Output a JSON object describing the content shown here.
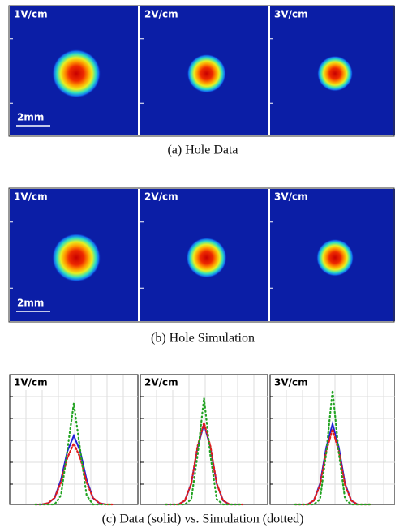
{
  "subfigures": [
    {
      "panels": [
        {
          "title": "1V/cm",
          "scale_bar": "2mm"
        },
        {
          "title": "2V/cm"
        },
        {
          "title": "3V/cm"
        }
      ],
      "caption": "(a) Hole Data"
    },
    {
      "panels": [
        {
          "title": "1V/cm",
          "scale_bar": "2mm"
        },
        {
          "title": "2V/cm"
        },
        {
          "title": "3V/cm"
        }
      ],
      "caption": "(b) Hole Simulation"
    },
    {
      "chart_data": [
        {
          "type": "line",
          "title": "1V/cm",
          "xlim": [
            0,
            1
          ],
          "ylim": [
            0,
            1
          ],
          "x": [
            0.2,
            0.25,
            0.3,
            0.35,
            0.4,
            0.45,
            0.5,
            0.55,
            0.6,
            0.65,
            0.7,
            0.75,
            0.8
          ],
          "series": [
            {
              "color": "#1f1fd6",
              "values": [
                0,
                0,
                0.01,
                0.05,
                0.19,
                0.41,
                0.53,
                0.41,
                0.19,
                0.05,
                0.01,
                0,
                0
              ]
            },
            {
              "color": "#e01c1c",
              "values": [
                0,
                0,
                0.01,
                0.05,
                0.17,
                0.36,
                0.47,
                0.36,
                0.17,
                0.05,
                0.01,
                0,
                0
              ]
            },
            {
              "color": "#22a322",
              "values": [
                0,
                0,
                0,
                0,
                0.07,
                0.42,
                0.78,
                0.42,
                0.07,
                0,
                0,
                0,
                0
              ]
            }
          ]
        },
        {
          "type": "line",
          "title": "2V/cm",
          "xlim": [
            0,
            1
          ],
          "ylim": [
            0,
            1
          ],
          "x": [
            0.2,
            0.25,
            0.3,
            0.35,
            0.4,
            0.45,
            0.5,
            0.55,
            0.6,
            0.65,
            0.7,
            0.75,
            0.8
          ],
          "series": [
            {
              "color": "#1f1fd6",
              "values": [
                0,
                0,
                0,
                0.03,
                0.16,
                0.44,
                0.62,
                0.44,
                0.16,
                0.03,
                0,
                0,
                0
              ]
            },
            {
              "color": "#e01c1c",
              "values": [
                0,
                0,
                0,
                0.03,
                0.16,
                0.45,
                0.63,
                0.45,
                0.16,
                0.03,
                0,
                0,
                0
              ]
            },
            {
              "color": "#22a322",
              "values": [
                0,
                0,
                0,
                0,
                0.04,
                0.38,
                0.82,
                0.38,
                0.04,
                0,
                0,
                0,
                0
              ]
            }
          ]
        },
        {
          "type": "line",
          "title": "3V/cm",
          "xlim": [
            0,
            1
          ],
          "ylim": [
            0,
            1
          ],
          "x": [
            0.2,
            0.25,
            0.3,
            0.35,
            0.4,
            0.45,
            0.5,
            0.55,
            0.6,
            0.65,
            0.7,
            0.75,
            0.8
          ],
          "series": [
            {
              "color": "#1f1fd6",
              "values": [
                0,
                0,
                0,
                0.03,
                0.16,
                0.44,
                0.62,
                0.44,
                0.16,
                0.03,
                0,
                0,
                0
              ]
            },
            {
              "color": "#e01c1c",
              "values": [
                0,
                0,
                0,
                0.03,
                0.15,
                0.41,
                0.58,
                0.41,
                0.15,
                0.03,
                0,
                0,
                0
              ]
            },
            {
              "color": "#22a322",
              "values": [
                0,
                0,
                0,
                0,
                0.04,
                0.4,
                0.88,
                0.4,
                0.04,
                0,
                0,
                0,
                0
              ]
            }
          ]
        }
      ],
      "caption": "(c) Data (solid) vs. Simulation (dotted)"
    }
  ]
}
